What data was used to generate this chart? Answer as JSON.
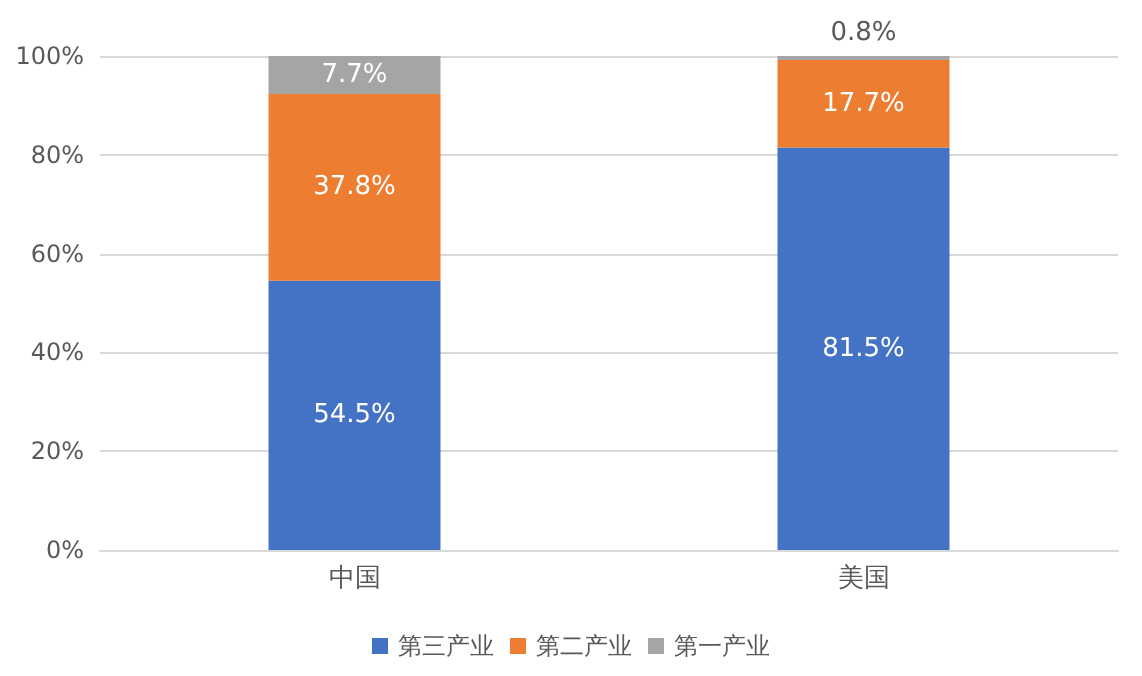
{
  "chart_data": {
    "type": "bar",
    "stacked": true,
    "categories": [
      "中国",
      "美国"
    ],
    "series": [
      {
        "name": "第三产业",
        "color": "#4472c4",
        "values": [
          54.5,
          81.5
        ],
        "value_labels": [
          "54.5%",
          "81.5%"
        ]
      },
      {
        "name": "第二产业",
        "color": "#ed7d31",
        "values": [
          37.8,
          17.7
        ],
        "value_labels": [
          "37.8%",
          "17.7%"
        ]
      },
      {
        "name": "第一产业",
        "color": "#a5a5a5",
        "values": [
          7.7,
          0.8
        ],
        "value_labels": [
          "7.7%",
          "0.8%"
        ]
      }
    ],
    "ylim": [
      0,
      100
    ],
    "yticks": [
      {
        "value": 0,
        "label": "0%"
      },
      {
        "value": 20,
        "label": "20%"
      },
      {
        "value": 40,
        "label": "40%"
      },
      {
        "value": 60,
        "label": "60%"
      },
      {
        "value": 80,
        "label": "80%"
      },
      {
        "value": 100,
        "label": "100%"
      }
    ],
    "grid": "y",
    "legend": "bottom"
  }
}
